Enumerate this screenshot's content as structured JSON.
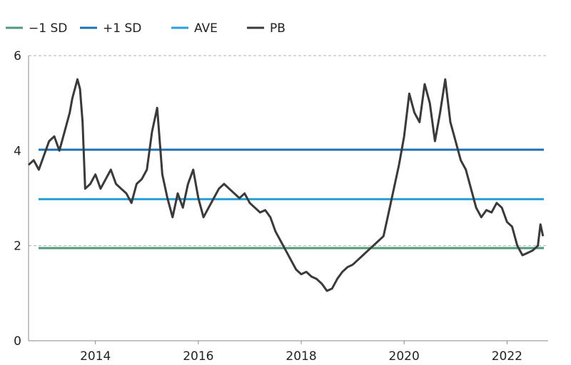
{
  "chart_data": {
    "type": "line",
    "title": "",
    "xlabel": "",
    "ylabel": "",
    "x_ticks": [
      "2014",
      "2016",
      "2018",
      "2020",
      "2022"
    ],
    "y_ticks": [
      "0",
      "2",
      "4",
      "6"
    ],
    "xlim": [
      2012.7,
      2022.8
    ],
    "ylim": [
      0,
      6
    ],
    "grid": "dashed horizontal lines at 2 and 6",
    "legend_position": "top",
    "series": [
      {
        "name": "−1 SD",
        "color": "#4f9a7c",
        "type": "hline",
        "value": 1.95
      },
      {
        "name": "+1 SD",
        "color": "#1f6fb2",
        "type": "hline",
        "value": 4.02
      },
      {
        "name": "AVE",
        "color": "#2b9fd8",
        "type": "hline",
        "value": 2.98
      },
      {
        "name": "PB",
        "color": "#3a3a3a",
        "type": "line",
        "x": [
          2012.7,
          2012.8,
          2012.9,
          2013.0,
          2013.1,
          2013.2,
          2013.3,
          2013.4,
          2013.5,
          2013.55,
          2013.65,
          2013.7,
          2013.75,
          2013.8,
          2013.9,
          2014.0,
          2014.1,
          2014.2,
          2014.3,
          2014.4,
          2014.5,
          2014.6,
          2014.7,
          2014.8,
          2014.9,
          2015.0,
          2015.1,
          2015.2,
          2015.3,
          2015.4,
          2015.5,
          2015.6,
          2015.7,
          2015.8,
          2015.9,
          2016.0,
          2016.1,
          2016.2,
          2016.3,
          2016.4,
          2016.5,
          2016.6,
          2016.7,
          2016.8,
          2016.9,
          2017.0,
          2017.1,
          2017.2,
          2017.3,
          2017.4,
          2017.5,
          2017.6,
          2017.7,
          2017.8,
          2017.9,
          2018.0,
          2018.1,
          2018.2,
          2018.3,
          2018.4,
          2018.5,
          2018.6,
          2018.7,
          2018.8,
          2018.9,
          2019.0,
          2019.1,
          2019.2,
          2019.3,
          2019.4,
          2019.5,
          2019.6,
          2019.7,
          2019.8,
          2019.9,
          2020.0,
          2020.1,
          2020.2,
          2020.3,
          2020.4,
          2020.5,
          2020.6,
          2020.7,
          2020.8,
          2020.9,
          2021.0,
          2021.1,
          2021.2,
          2021.3,
          2021.4,
          2021.5,
          2021.6,
          2021.7,
          2021.8,
          2021.9,
          2022.0,
          2022.1,
          2022.2,
          2022.3,
          2022.4,
          2022.5,
          2022.6,
          2022.65,
          2022.7
        ],
        "y": [
          3.7,
          3.8,
          3.6,
          3.9,
          4.2,
          4.3,
          4.0,
          4.4,
          4.8,
          5.1,
          5.5,
          5.3,
          4.6,
          3.2,
          3.3,
          3.5,
          3.2,
          3.4,
          3.6,
          3.3,
          3.2,
          3.1,
          2.9,
          3.3,
          3.4,
          3.6,
          4.4,
          4.9,
          3.5,
          3.0,
          2.6,
          3.1,
          2.8,
          3.3,
          3.6,
          3.0,
          2.6,
          2.8,
          3.0,
          3.2,
          3.3,
          3.2,
          3.1,
          3.0,
          3.1,
          2.9,
          2.8,
          2.7,
          2.75,
          2.6,
          2.3,
          2.1,
          1.9,
          1.7,
          1.5,
          1.4,
          1.45,
          1.35,
          1.3,
          1.2,
          1.05,
          1.1,
          1.3,
          1.45,
          1.55,
          1.6,
          1.7,
          1.8,
          1.9,
          2.0,
          2.1,
          2.2,
          2.7,
          3.2,
          3.7,
          4.3,
          5.2,
          4.8,
          4.6,
          5.4,
          5.0,
          4.2,
          4.8,
          5.5,
          4.6,
          4.2,
          3.8,
          3.6,
          3.2,
          2.8,
          2.6,
          2.75,
          2.7,
          2.9,
          2.8,
          2.5,
          2.4,
          2.0,
          1.8,
          1.85,
          1.9,
          2.0,
          2.45,
          2.2
        ]
      }
    ]
  }
}
